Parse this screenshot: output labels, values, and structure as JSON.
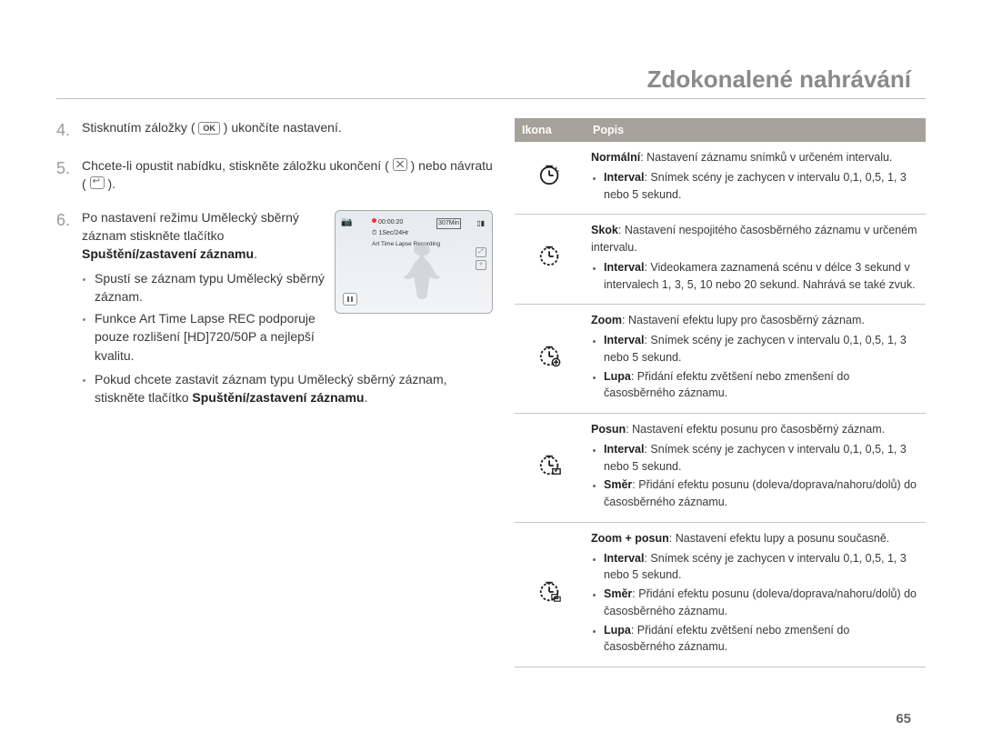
{
  "page_title": "Zdokonalené nahrávání",
  "page_number": "65",
  "steps": {
    "s4": {
      "n": "4.",
      "before": "Stisknutím záložky (",
      "after": ") ukončíte nastavení.",
      "ok": "OK"
    },
    "s5": {
      "n": "5.",
      "before": "Chcete-li opustit nabídku, stiskněte záložku ukončení (",
      "mid": ") nebo návratu (",
      "after": ")."
    },
    "s6": {
      "n": "6.",
      "l1": "Po nastavení režimu Umělecký sběrný záznam stiskněte tlačítko ",
      "l1b": "Spuštění/zastavení záznamu",
      "l1c": ".",
      "b1": "Spustí se záznam typu Umělecký sběrný záznam.",
      "b2": "Funkce Art Time Lapse REC podporuje pouze rozlišení [HD]720/50P a nejlepší kvalitu.",
      "b3a": "Pokud chcete zastavit záznam typu Umělecký sběrný záznam, stiskněte tlačítko ",
      "b3b": "Spuštění/zastavení záznamu",
      "b3c": "."
    }
  },
  "lcd": {
    "time": "00:00:20",
    "min": "307Min",
    "rate": "1Sec/24Hr",
    "mode": "Art Time Lapse Recording",
    "clock": "⏱",
    "side1": "⤢",
    "side2": "✧"
  },
  "table": {
    "h1": "Ikona",
    "h2": "Popis",
    "rows": [
      {
        "icon": "normal",
        "title": "Normální",
        "tdesc": ": Nastavení záznamu snímků v určeném intervalu.",
        "items": [
          {
            "b": "Interval",
            "t": ": Snímek scény je zachycen v intervalu 0,1, 0,5, 1, 3 nebo 5 sekund."
          }
        ]
      },
      {
        "icon": "jump",
        "title": "Skok",
        "tdesc": ": Nastavení nespojitého časosběrného záznamu v určeném intervalu.",
        "items": [
          {
            "b": "Interval",
            "t": ": Videokamera zaznamená scénu v délce 3 sekund v intervalech 1, 3, 5, 10 nebo 20 sekund. Nahrává se také zvuk."
          }
        ]
      },
      {
        "icon": "zoom",
        "title": "Zoom",
        "tdesc": ": Nastavení efektu lupy pro časosběrný záznam.",
        "items": [
          {
            "b": "Interval",
            "t": ": Snímek scény je zachycen v intervalu 0,1, 0,5, 1, 3 nebo 5 sekund."
          },
          {
            "b": "Lupa",
            "t": ": Přidání efektu zvětšení nebo zmenšení do časosběrného záznamu."
          }
        ]
      },
      {
        "icon": "pan",
        "title": "Posun",
        "tdesc": ": Nastavení efektu posunu pro časosběrný záznam.",
        "items": [
          {
            "b": "Interval",
            "t": ": Snímek scény je zachycen v intervalu 0,1, 0,5, 1, 3 nebo 5 sekund."
          },
          {
            "b": "Směr",
            "t": ": Přidání efektu posunu (doleva/doprava/nahoru/dolů) do časosběrného záznamu."
          }
        ]
      },
      {
        "icon": "zoompan",
        "title": "Zoom + posun",
        "tdesc": ": Nastavení efektu lupy a posunu současně.",
        "items": [
          {
            "b": "Interval",
            "t": ": Snímek scény je zachycen v intervalu 0,1, 0,5, 1, 3 nebo 5 sekund."
          },
          {
            "b": "Směr",
            "t": ": Přidání efektu posunu (doleva/doprava/nahoru/dolů) do časosběrného záznamu."
          },
          {
            "b": "Lupa",
            "t": ": Přidání efektu zvětšení nebo zmenšení do časosběrného záznamu."
          }
        ]
      }
    ]
  },
  "icons": {
    "normal": {
      "dash": "",
      "badge": "L"
    },
    "jump": {
      "dash": "3,2",
      "badge": ""
    },
    "zoom": {
      "dash": "3,2",
      "badge": "⊕"
    },
    "pan": {
      "dash": "3,2",
      "badge": "▭"
    },
    "zoompan": {
      "dash": "3,2",
      "badge": "⧉"
    }
  }
}
